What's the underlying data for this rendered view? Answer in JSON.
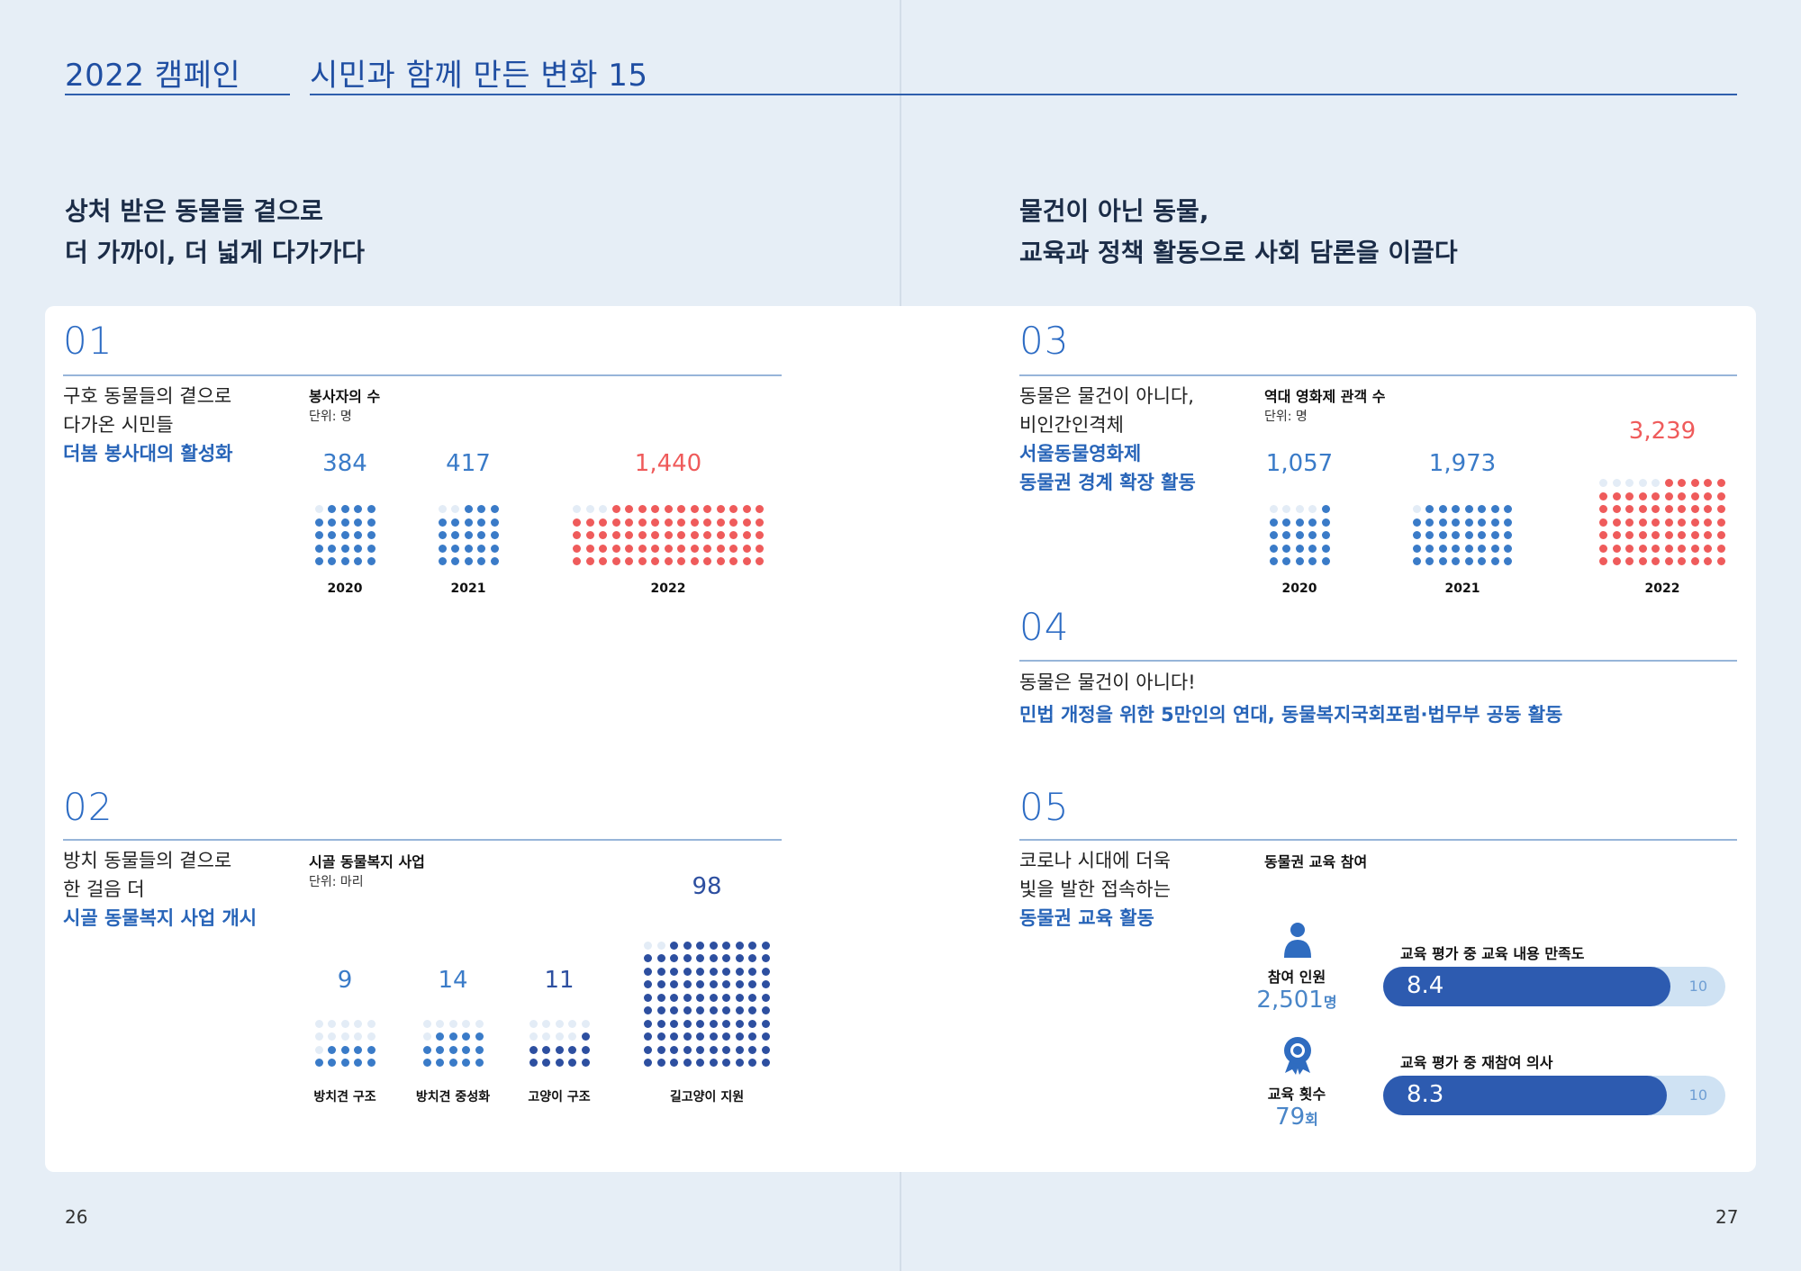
{
  "header": {
    "campaign": "2022 캠페인",
    "title": "시민과 함께 만든 변화 15"
  },
  "left_intro": [
    "상처 받은 동물들 곁으로",
    "더 가까이, 더 넓게 다가가다"
  ],
  "right_intro": [
    "물건이 아닌 동물,",
    "교육과 정책 활동으로 사회 담론을 이끌다"
  ],
  "sections": {
    "s01": {
      "num": "01",
      "desc": [
        "구호 동물들의 곁으로",
        "다가온 시민들"
      ],
      "highlight": "더봄 봉사대의 활성화",
      "chart_title": "봉사자의 수",
      "chart_unit": "단위: 명"
    },
    "s02": {
      "num": "02",
      "desc": [
        "방치 동물들의 곁으로",
        "한 걸음 더"
      ],
      "highlight": "시골 동물복지 사업 개시",
      "chart_title": "시골 동물복지 사업",
      "chart_unit": "단위: 마리"
    },
    "s03": {
      "num": "03",
      "desc": [
        "동물은 물건이 아니다,",
        "비인간인격체"
      ],
      "highlight": [
        "서울동물영화제",
        "동물권 경계 확장 활동"
      ],
      "chart_title": "역대 영화제 관객 수",
      "chart_unit": "단위: 명"
    },
    "s04": {
      "num": "04",
      "desc": "동물은 물건이 아니다!",
      "highlight": "민법 개정을 위한 5만인의 연대, 동물복지국회포럼·법무부 공동 활동"
    },
    "s05": {
      "num": "05",
      "desc": [
        "코로나 시대에 더욱",
        "빛을 발한 접속하는"
      ],
      "highlight": "동물권 교육 활동",
      "chart_title": "동물권 교육 참여",
      "participants_label": "참여 인원",
      "participants_value": "2,501",
      "participants_unit": "명",
      "sessions_label": "교육 횟수",
      "sessions_value": "79",
      "sessions_unit": "회"
    }
  },
  "chart_data": [
    {
      "type": "bar",
      "title": "봉사자의 수",
      "unit": "단위: 명",
      "categories": [
        "2020",
        "2021",
        "2022"
      ],
      "values": [
        384,
        417,
        1440
      ],
      "value_labels": [
        "384",
        "417",
        "1,440"
      ],
      "colors": [
        "#3a7bc8",
        "#3a7bc8",
        "#ef5b5b"
      ]
    },
    {
      "type": "bar",
      "title": "시골 동물복지 사업",
      "unit": "단위: 마리",
      "categories": [
        "방치견 구조",
        "방치견 중성화",
        "고양이 구조",
        "길고양이 지원"
      ],
      "values": [
        9,
        14,
        11,
        98
      ],
      "value_labels": [
        "9",
        "14",
        "11",
        "98"
      ],
      "colors": [
        "#3a7bc8",
        "#3a7bc8",
        "#2d4fa0",
        "#2d4fa0"
      ]
    },
    {
      "type": "bar",
      "title": "역대 영화제 관객 수",
      "unit": "단위: 명",
      "categories": [
        "2020",
        "2021",
        "2022"
      ],
      "values": [
        1057,
        1973,
        3239
      ],
      "value_labels": [
        "1,057",
        "1,973",
        "3,239"
      ],
      "colors": [
        "#3a7bc8",
        "#3a7bc8",
        "#ef5b5b"
      ]
    },
    {
      "type": "bar",
      "title": "동물권 교육 참여",
      "categories": [
        "교육 평가 중 교육 내용 만족도",
        "교육 평가 중 재참여 의사"
      ],
      "values": [
        8.4,
        8.3
      ],
      "value_labels": [
        "8.4",
        "8.3"
      ],
      "max_value": 10,
      "max_label": "10"
    }
  ],
  "page_numbers": {
    "left": "26",
    "right": "27"
  }
}
